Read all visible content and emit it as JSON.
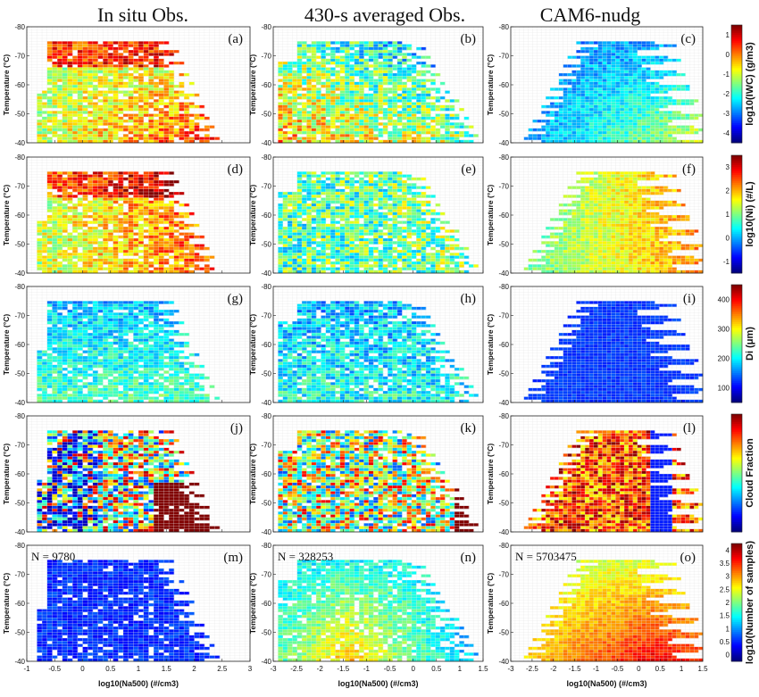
{
  "figure": {
    "column_titles": [
      "In situ Obs.",
      "430-s averaged Obs.",
      "CAM6-nudg"
    ],
    "y_axis_label": "Temperature (°C)",
    "x_axis_label": "log10(Na500) (#/cm3)"
  },
  "chart_data": [
    {
      "panel": "(a)",
      "type": "heatmap",
      "column": "In situ Obs.",
      "variable": "log10(IWC) (g/m3)",
      "xlim": [
        -1,
        3
      ],
      "ylim": [
        -40,
        -80
      ],
      "xticks": [
        -1,
        -0.5,
        0,
        0.5,
        1,
        1.5,
        2,
        2.5,
        3
      ],
      "yticks": [
        -80,
        -70,
        -60,
        -50,
        -40
      ]
    },
    {
      "panel": "(b)",
      "type": "heatmap",
      "column": "430-s averaged Obs.",
      "variable": "log10(IWC) (g/m3)",
      "xlim": [
        -3,
        1.5
      ],
      "ylim": [
        -40,
        -80
      ]
    },
    {
      "panel": "(c)",
      "type": "heatmap",
      "column": "CAM6-nudg",
      "variable": "log10(IWC) (g/m3)",
      "xlim": [
        -3,
        1.5
      ],
      "ylim": [
        -40,
        -80
      ]
    },
    {
      "panel": "(d)",
      "type": "heatmap",
      "column": "In situ Obs.",
      "variable": "log10(Ni) (#/L)",
      "xlim": [
        -1,
        3
      ],
      "ylim": [
        -40,
        -80
      ]
    },
    {
      "panel": "(e)",
      "type": "heatmap",
      "column": "430-s averaged Obs.",
      "variable": "log10(Ni) (#/L)",
      "xlim": [
        -3,
        1.5
      ],
      "ylim": [
        -40,
        -80
      ]
    },
    {
      "panel": "(f)",
      "type": "heatmap",
      "column": "CAM6-nudg",
      "variable": "log10(Ni) (#/L)",
      "xlim": [
        -3,
        1.5
      ],
      "ylim": [
        -40,
        -80
      ]
    },
    {
      "panel": "(g)",
      "type": "heatmap",
      "column": "In situ Obs.",
      "variable": "Di (μm)",
      "xlim": [
        -1,
        3
      ],
      "ylim": [
        -40,
        -80
      ]
    },
    {
      "panel": "(h)",
      "type": "heatmap",
      "column": "430-s averaged Obs.",
      "variable": "Di (μm)",
      "xlim": [
        -3,
        1.5
      ],
      "ylim": [
        -40,
        -80
      ]
    },
    {
      "panel": "(i)",
      "type": "heatmap",
      "column": "CAM6-nudg",
      "variable": "Di (μm)",
      "xlim": [
        -3,
        1.5
      ],
      "ylim": [
        -40,
        -80
      ]
    },
    {
      "panel": "(j)",
      "type": "heatmap",
      "column": "In situ Obs.",
      "variable": "Cloud Fraction",
      "xlim": [
        -1,
        3
      ],
      "ylim": [
        -40,
        -80
      ]
    },
    {
      "panel": "(k)",
      "type": "heatmap",
      "column": "430-s averaged Obs.",
      "variable": "Cloud Fraction",
      "xlim": [
        -3,
        1.5
      ],
      "ylim": [
        -40,
        -80
      ]
    },
    {
      "panel": "(l)",
      "type": "heatmap",
      "column": "CAM6-nudg",
      "variable": "Cloud Fraction",
      "xlim": [
        -3,
        1.5
      ],
      "ylim": [
        -40,
        -80
      ]
    },
    {
      "panel": "(m)",
      "type": "heatmap",
      "column": "In situ Obs.",
      "variable": "log10(Number of samples)",
      "xlim": [
        -1,
        3
      ],
      "ylim": [
        -40,
        -80
      ],
      "n_samples": "N = 9780"
    },
    {
      "panel": "(n)",
      "type": "heatmap",
      "column": "430-s averaged Obs.",
      "variable": "log10(Number of samples)",
      "xlim": [
        -3,
        1.5
      ],
      "ylim": [
        -40,
        -80
      ],
      "n_samples": "N = 328253"
    },
    {
      "panel": "(o)",
      "type": "heatmap",
      "column": "CAM6-nudg",
      "variable": "log10(Number of samples)",
      "xlim": [
        -3,
        1.5
      ],
      "ylim": [
        -40,
        -80
      ],
      "n_samples": "N = 5703475"
    }
  ],
  "panels": {
    "columns": [
      {
        "xlim": [
          -1,
          3
        ],
        "xticks": [
          "-1",
          "-0.5",
          "0",
          "0.5",
          "1",
          "1.5",
          "2",
          "2.5",
          "3"
        ]
      },
      {
        "xlim": [
          -3,
          1.5
        ],
        "xticks": [
          "-3",
          "-2.5",
          "-2",
          "-1.5",
          "-1",
          "-0.5",
          "0",
          "0.5",
          "1",
          "1.5"
        ]
      },
      {
        "xlim": [
          -3,
          1.5
        ],
        "xticks": [
          "-3",
          "-2.5",
          "-2",
          "-1.5",
          "-1",
          "-0.5",
          "0",
          "0.5",
          "1",
          "1.5"
        ]
      }
    ],
    "yticks": [
      "-80",
      "-70",
      "-60",
      "-50",
      "-40"
    ],
    "rows": [
      {
        "labels": [
          "(a)",
          "(b)",
          "(c)"
        ],
        "kind": "iwc",
        "n": [
          "",
          "",
          ""
        ]
      },
      {
        "labels": [
          "(d)",
          "(e)",
          "(f)"
        ],
        "kind": "ni",
        "n": [
          "",
          "",
          ""
        ]
      },
      {
        "labels": [
          "(g)",
          "(h)",
          "(i)"
        ],
        "kind": "di",
        "n": [
          "",
          "",
          ""
        ]
      },
      {
        "labels": [
          "(j)",
          "(k)",
          "(l)"
        ],
        "kind": "cf",
        "n": [
          "",
          "",
          ""
        ]
      },
      {
        "labels": [
          "(m)",
          "(n)",
          "(o)"
        ],
        "kind": "ns",
        "n": [
          "N = 9780",
          "N = 328253",
          "N = 5703475"
        ]
      }
    ]
  },
  "colorbars": [
    {
      "label": "log10(IWC) (g/m3)",
      "ticks": [
        "1",
        "0",
        "-1",
        "-2",
        "-3",
        "-4"
      ],
      "range": [
        -4,
        1
      ]
    },
    {
      "label": "log10(Ni) (#/L)",
      "ticks": [
        "3",
        "2",
        "1",
        "0",
        "-1"
      ],
      "range": [
        -1.5,
        3
      ]
    },
    {
      "label": "Di (μm)",
      "ticks": [
        "400",
        "300",
        "200",
        "100"
      ],
      "range": [
        0,
        400
      ]
    },
    {
      "label": "Cloud Fraction",
      "ticks": [],
      "range": [
        0,
        1
      ]
    },
    {
      "label": "log10(Number of samples)",
      "ticks": [
        "4",
        "3.5",
        "3",
        "2.5",
        "2",
        "1.5",
        "1",
        "0.5",
        "0"
      ],
      "range": [
        0,
        4
      ]
    }
  ]
}
